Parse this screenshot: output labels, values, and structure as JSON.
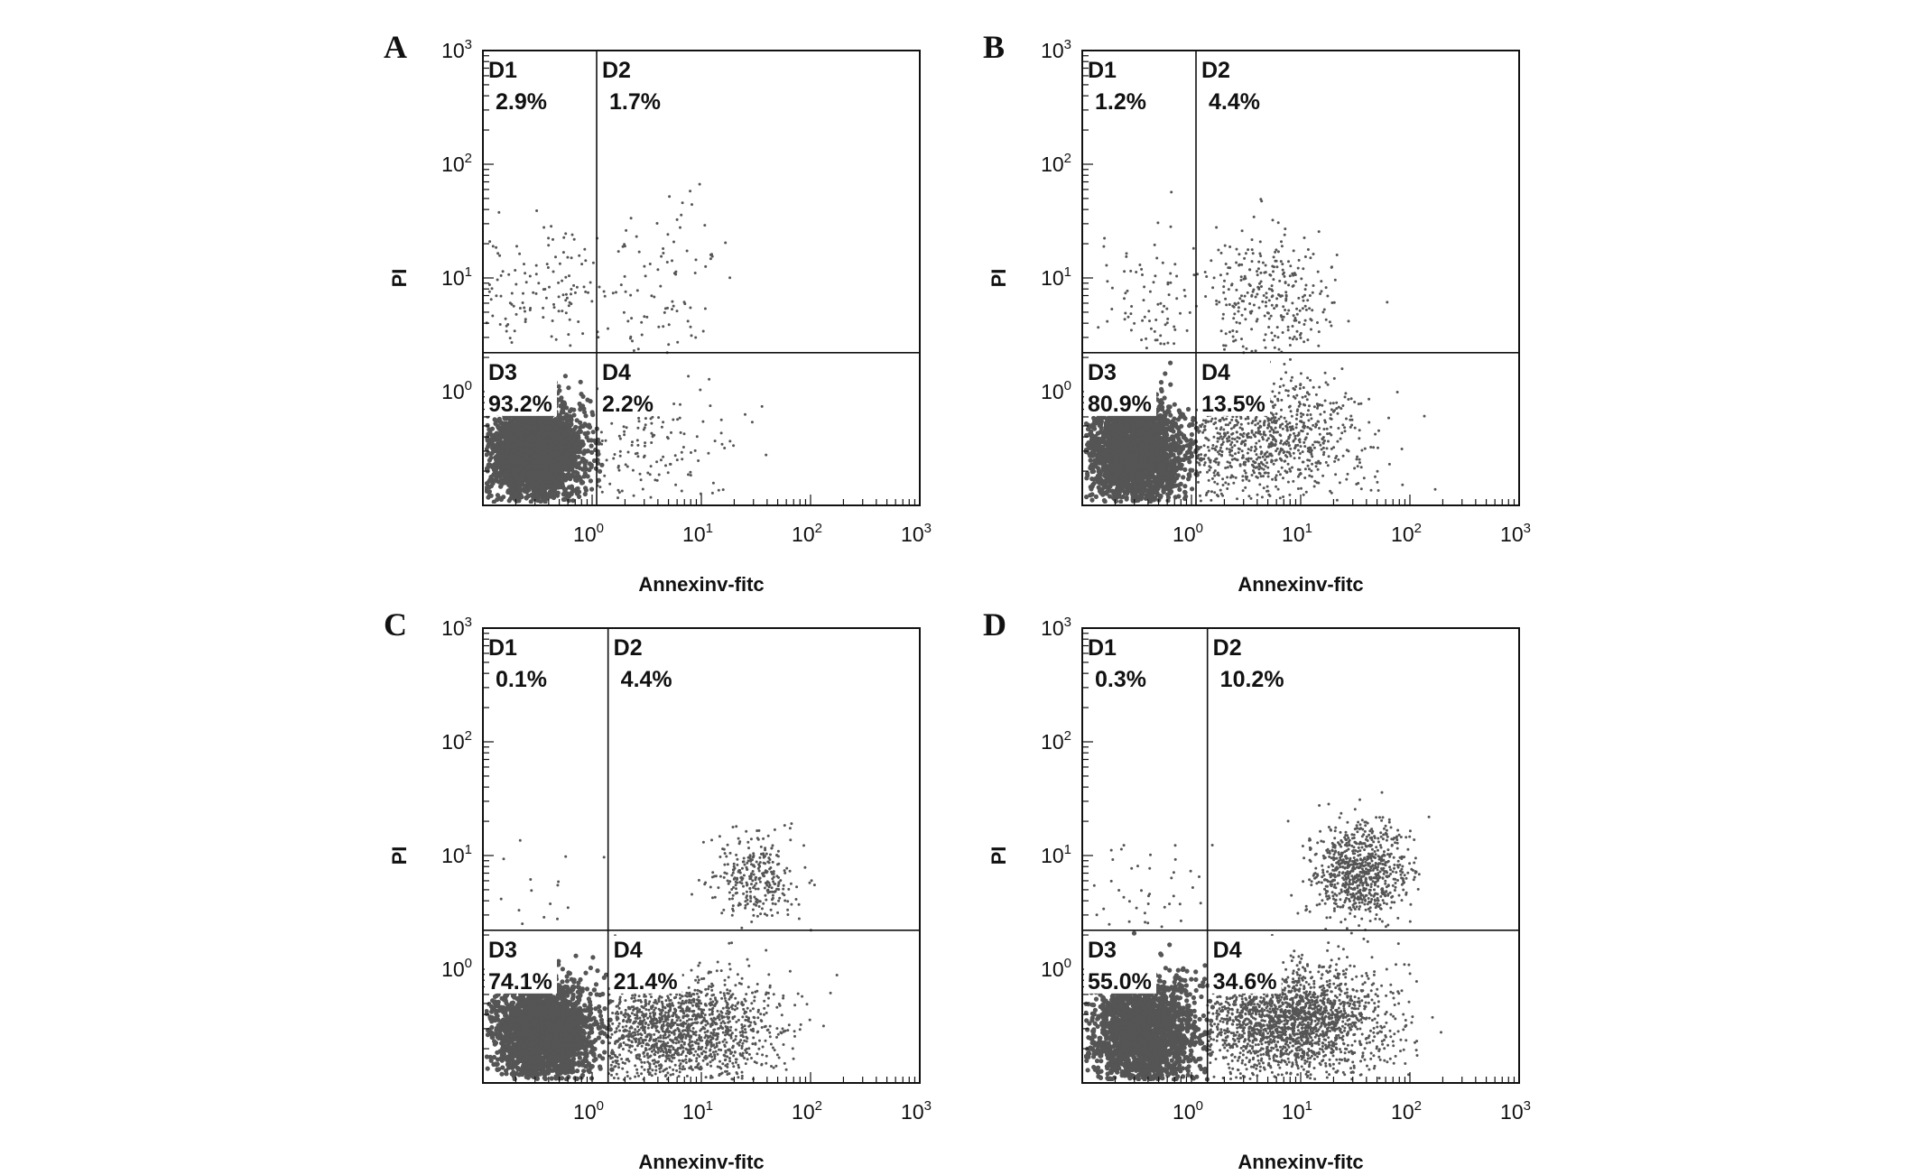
{
  "chart_data": [
    {
      "type": "scatter",
      "panel": "A",
      "xlabel": "Annexinv-fitc",
      "ylabel": "PI",
      "x_scale": "log",
      "y_scale": "log",
      "xlim": [
        0.1,
        1000
      ],
      "ylim": [
        0.1,
        1000
      ],
      "x_ticks": [
        {
          "base": "10",
          "exp": "0"
        },
        {
          "base": "10",
          "exp": "1"
        },
        {
          "base": "10",
          "exp": "2"
        },
        {
          "base": "10",
          "exp": "3"
        }
      ],
      "y_ticks": [
        {
          "base": "10",
          "exp": "0"
        },
        {
          "base": "10",
          "exp": "1"
        },
        {
          "base": "10",
          "exp": "2"
        },
        {
          "base": "10",
          "exp": "3"
        }
      ],
      "gate": {
        "x": 1.1,
        "y": 2.2
      },
      "quadrants": [
        {
          "name": "D1",
          "value": "2.9%"
        },
        {
          "name": "D2",
          "value": "1.7%"
        },
        {
          "name": "D3",
          "value": "93.2%"
        },
        {
          "name": "D4",
          "value": "2.2%"
        }
      ],
      "clusters": [
        {
          "region": "D3",
          "x": 0.3,
          "y": 0.3,
          "count": 3000,
          "spread": 0.22
        },
        {
          "region": "D1",
          "x": 0.35,
          "y": 8,
          "count": 120,
          "spread": 0.3
        },
        {
          "region": "D2",
          "x": 4,
          "y": 8,
          "count": 90,
          "spread": 0.35
        },
        {
          "region": "D4",
          "x": 3,
          "y": 0.35,
          "count": 140,
          "spread": 0.35
        }
      ]
    },
    {
      "type": "scatter",
      "panel": "B",
      "xlabel": "Annexinv-fitc",
      "ylabel": "PI",
      "x_scale": "log",
      "y_scale": "log",
      "xlim": [
        0.1,
        1000
      ],
      "ylim": [
        0.1,
        1000
      ],
      "x_ticks": [
        {
          "base": "10",
          "exp": "0"
        },
        {
          "base": "10",
          "exp": "1"
        },
        {
          "base": "10",
          "exp": "2"
        },
        {
          "base": "10",
          "exp": "3"
        }
      ],
      "y_ticks": [
        {
          "base": "10",
          "exp": "0"
        },
        {
          "base": "10",
          "exp": "1"
        },
        {
          "base": "10",
          "exp": "2"
        },
        {
          "base": "10",
          "exp": "3"
        }
      ],
      "gate": {
        "x": 1.1,
        "y": 2.2
      },
      "quadrants": [
        {
          "name": "D1",
          "value": "1.2%"
        },
        {
          "name": "D2",
          "value": "4.4%"
        },
        {
          "name": "D3",
          "value": "80.9%"
        },
        {
          "name": "D4",
          "value": "13.5%"
        }
      ],
      "clusters": [
        {
          "region": "D3",
          "x": 0.3,
          "y": 0.3,
          "count": 2600,
          "spread": 0.22
        },
        {
          "region": "D1",
          "x": 0.4,
          "y": 6,
          "count": 80,
          "spread": 0.3
        },
        {
          "region": "D2",
          "x": 5,
          "y": 6,
          "count": 300,
          "spread": 0.3
        },
        {
          "region": "D4",
          "x": 4,
          "y": 0.4,
          "count": 900,
          "spread": 0.35
        }
      ]
    },
    {
      "type": "scatter",
      "panel": "C",
      "xlabel": "Annexinv-fitc",
      "ylabel": "PI",
      "x_scale": "log",
      "y_scale": "log",
      "xlim": [
        0.1,
        1000
      ],
      "ylim": [
        0.1,
        1000
      ],
      "x_ticks": [
        {
          "base": "10",
          "exp": "0"
        },
        {
          "base": "10",
          "exp": "1"
        },
        {
          "base": "10",
          "exp": "2"
        },
        {
          "base": "10",
          "exp": "3"
        }
      ],
      "y_ticks": [
        {
          "base": "10",
          "exp": "0"
        },
        {
          "base": "10",
          "exp": "1"
        },
        {
          "base": "10",
          "exp": "2"
        },
        {
          "base": "10",
          "exp": "3"
        }
      ],
      "gate": {
        "x": 1.4,
        "y": 2.2
      },
      "quadrants": [
        {
          "name": "D1",
          "value": "0.1%"
        },
        {
          "name": "D2",
          "value": "4.4%"
        },
        {
          "name": "D3",
          "value": "74.1%"
        },
        {
          "name": "D4",
          "value": "21.4%"
        }
      ],
      "clusters": [
        {
          "region": "D3",
          "x": 0.35,
          "y": 0.28,
          "count": 2600,
          "spread": 0.22
        },
        {
          "region": "D1",
          "x": 0.4,
          "y": 4,
          "count": 15,
          "spread": 0.3
        },
        {
          "region": "D2",
          "x": 30,
          "y": 6,
          "count": 300,
          "spread": 0.2
        },
        {
          "region": "D4",
          "x": 6,
          "y": 0.3,
          "count": 1500,
          "spread": 0.32
        }
      ]
    },
    {
      "type": "scatter",
      "panel": "D",
      "xlabel": "Annexinv-fitc",
      "ylabel": "PI",
      "x_scale": "log",
      "y_scale": "log",
      "xlim": [
        0.1,
        1000
      ],
      "ylim": [
        0.1,
        1000
      ],
      "x_ticks": [
        {
          "base": "10",
          "exp": "0"
        },
        {
          "base": "10",
          "exp": "1"
        },
        {
          "base": "10",
          "exp": "2"
        },
        {
          "base": "10",
          "exp": "3"
        }
      ],
      "y_ticks": [
        {
          "base": "10",
          "exp": "0"
        },
        {
          "base": "10",
          "exp": "1"
        },
        {
          "base": "10",
          "exp": "2"
        },
        {
          "base": "10",
          "exp": "3"
        }
      ],
      "gate": {
        "x": 1.4,
        "y": 2.2
      },
      "quadrants": [
        {
          "name": "D1",
          "value": "0.3%"
        },
        {
          "name": "D2",
          "value": "10.2%"
        },
        {
          "name": "D3",
          "value": "55.0%"
        },
        {
          "name": "D4",
          "value": "34.6%"
        }
      ],
      "clusters": [
        {
          "region": "D3",
          "x": 0.35,
          "y": 0.28,
          "count": 2200,
          "spread": 0.24
        },
        {
          "region": "D1",
          "x": 0.5,
          "y": 5,
          "count": 40,
          "spread": 0.3
        },
        {
          "region": "D2",
          "x": 35,
          "y": 7,
          "count": 800,
          "spread": 0.22
        },
        {
          "region": "D4",
          "x": 8,
          "y": 0.35,
          "count": 2000,
          "spread": 0.32
        }
      ]
    }
  ],
  "colors": {
    "dot": "#555555",
    "axis": "#111111",
    "label_bg": "#ffffff"
  }
}
